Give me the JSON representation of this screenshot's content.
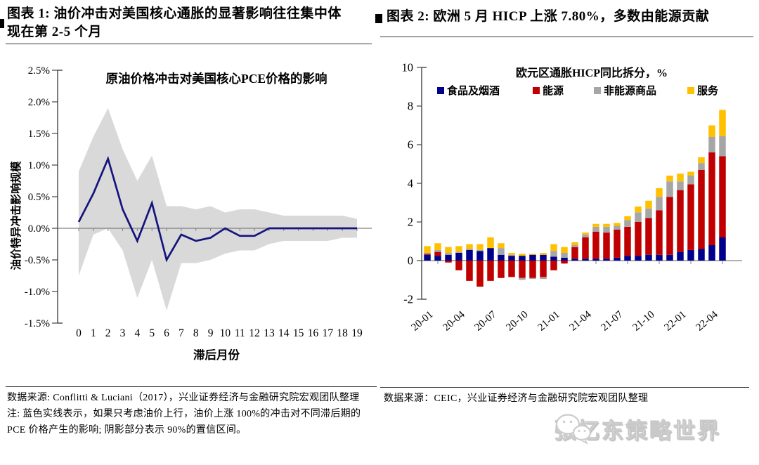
{
  "page": {
    "left": {
      "figure_title": "图表 1: 油价冲击对美国核心通胀的显著影响往往集中体现在第 2-5 个月",
      "footer_source": "数据来源: Conflitti & Luciani（2017），兴业证券经济与金融研究院宏观团队整理",
      "footer_note": "注: 蓝色实线表示，如果只考虑油价上行，油价上涨 100%的冲击对不同滞后期的 PCE 价格产生的影响; 阴影部分表示 90%的置信区间。"
    },
    "right": {
      "figure_title": "图表 2: 欧洲 5 月 HICP 上涨 7.80%，多数由能源贡献",
      "footer_source": "数据来源：CEIC，兴业证券经济与金融研究院宏观团队整理"
    },
    "watermark": {
      "text": "张忆东策略世界",
      "icon": "wechat-icon",
      "color": "#d9d9d9"
    }
  },
  "chart_data": [
    {
      "type": "line",
      "title": "原油价格冲击对美国核心PCE价格的影响",
      "xlabel": "滞后月份",
      "ylabel": "油价特异冲击影响规模",
      "ylim": [
        -1.5,
        2.5
      ],
      "yticks": [
        "2.5%",
        "2.0%",
        "1.5%",
        "1.0%",
        "0.5%",
        "0.0%",
        "-0.5%",
        "-1.0%",
        "-1.5%"
      ],
      "x": [
        0,
        1,
        2,
        3,
        4,
        5,
        6,
        7,
        8,
        9,
        10,
        11,
        12,
        13,
        14,
        15,
        16,
        17,
        18,
        19
      ],
      "series": [
        {
          "name": "油价上涨100%冲击对核心PCE的影响（蓝色实线）",
          "color": "#14147D",
          "values": [
            0.1,
            0.55,
            1.1,
            0.3,
            -0.2,
            0.4,
            -0.5,
            -0.1,
            -0.2,
            -0.15,
            0.0,
            -0.12,
            -0.12,
            0.0,
            0.0,
            0.0,
            0.0,
            0.0,
            0.0,
            0.0
          ]
        }
      ],
      "band": {
        "name": "90%置信区间（阴影）",
        "color": "#D9D9D9",
        "upper": [
          0.9,
          1.45,
          1.9,
          1.25,
          0.75,
          1.15,
          0.35,
          0.35,
          0.3,
          0.35,
          0.25,
          0.3,
          0.3,
          0.25,
          0.2,
          0.2,
          0.2,
          0.2,
          0.2,
          0.15
        ],
        "lower": [
          -0.75,
          -0.1,
          0.0,
          -0.35,
          -1.1,
          -0.5,
          -1.3,
          -0.55,
          -0.55,
          -0.5,
          -0.4,
          -0.35,
          -0.35,
          -0.25,
          -0.2,
          -0.2,
          -0.2,
          -0.2,
          -0.15,
          -0.15
        ]
      },
      "grid": false,
      "legend_position": "none"
    },
    {
      "type": "bar",
      "subtype": "stacked",
      "title": "欧元区通胀HICP同比拆分，%",
      "ylim": [
        -2,
        10
      ],
      "yticks": [
        "10",
        "8",
        "6",
        "4",
        "2",
        "0",
        "-2"
      ],
      "categories": [
        "20-01",
        "20-02",
        "20-03",
        "20-04",
        "20-05",
        "20-06",
        "20-07",
        "20-08",
        "20-09",
        "20-10",
        "20-11",
        "20-12",
        "21-01",
        "21-02",
        "21-03",
        "21-04",
        "21-05",
        "21-06",
        "21-07",
        "21-08",
        "21-09",
        "21-10",
        "21-11",
        "21-12",
        "22-01",
        "22-02",
        "22-03",
        "22-04",
        "22-05"
      ],
      "x_tick_indices": [
        0,
        3,
        6,
        9,
        12,
        15,
        18,
        21,
        24,
        27
      ],
      "x_tick_labels": [
        "20-01",
        "20-04",
        "20-07",
        "20-10",
        "21-01",
        "21-04",
        "21-07",
        "21-10",
        "22-01",
        "22-04"
      ],
      "series": [
        {
          "name": "食品及烟酒",
          "color": "#00008B",
          "values": [
            0.3,
            0.25,
            0.3,
            0.4,
            0.55,
            0.5,
            0.65,
            0.3,
            0.25,
            0.25,
            0.3,
            0.3,
            0.2,
            0.15,
            0.1,
            0.1,
            0.1,
            0.1,
            0.15,
            0.25,
            0.25,
            0.3,
            0.3,
            0.3,
            0.45,
            0.55,
            0.6,
            0.8,
            1.2
          ]
        },
        {
          "name": "能源",
          "color": "#C00000",
          "values": [
            0.05,
            0.2,
            -0.1,
            -0.5,
            -1.05,
            -1.35,
            -1.05,
            -0.9,
            -0.85,
            -0.9,
            -0.9,
            -0.85,
            -0.5,
            -0.15,
            0.6,
            1.1,
            1.4,
            1.35,
            1.45,
            1.5,
            1.75,
            1.9,
            2.3,
            3.0,
            3.2,
            3.4,
            4.1,
            4.8,
            4.2
          ]
        },
        {
          "name": "非能源商品",
          "color": "#A6A6A6",
          "values": [
            0.05,
            0.1,
            0.1,
            0.05,
            0.05,
            0.05,
            0.0,
            0.35,
            0.05,
            -0.1,
            -0.05,
            -0.1,
            0.3,
            0.25,
            0.1,
            0.15,
            0.25,
            0.3,
            0.2,
            0.35,
            0.5,
            0.5,
            0.7,
            0.8,
            0.45,
            0.45,
            0.35,
            0.8,
            1.05
          ]
        },
        {
          "name": "服务",
          "color": "#FFC000",
          "values": [
            0.35,
            0.35,
            0.3,
            0.3,
            0.25,
            0.3,
            0.55,
            0.25,
            0.1,
            0.1,
            0.05,
            0.1,
            0.35,
            0.3,
            0.15,
            0.1,
            0.15,
            0.15,
            0.15,
            0.2,
            0.3,
            0.4,
            0.45,
            0.3,
            0.4,
            0.2,
            0.3,
            0.6,
            1.35
          ]
        }
      ],
      "grid": false,
      "legend_position": "top"
    }
  ]
}
